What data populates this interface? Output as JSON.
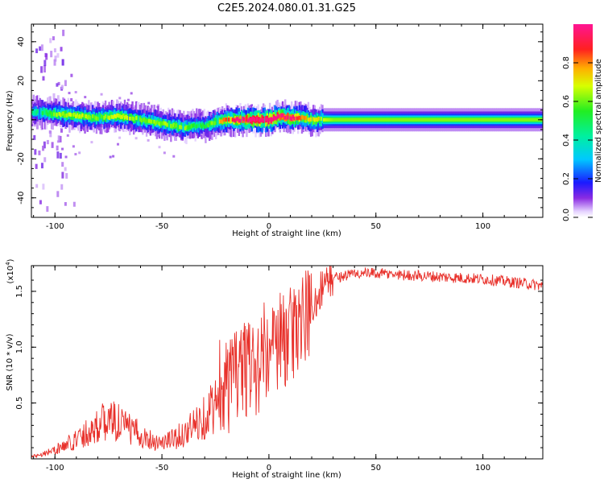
{
  "figure": {
    "title": "C2E5.2024.080.01.31.G25"
  },
  "chart_data": [
    {
      "type": "heatmap",
      "title": "C2E5.2024.080.01.31.G25",
      "xlabel": "Height of straight line (km)",
      "ylabel": "Frequency (Hz)",
      "xlim": [
        -111,
        128
      ],
      "ylim": [
        -50,
        49
      ],
      "xticks": [
        -100,
        -50,
        0,
        50,
        100
      ],
      "yticks": [
        40,
        20,
        0,
        -20,
        -40
      ],
      "colorbar": {
        "label": "Normalized spectral amplitude",
        "range": [
          0,
          1
        ],
        "ticks": [
          "0.0",
          "0.2",
          "0.4",
          "0.6",
          "0.8"
        ],
        "colormap": "rainbow (violet-blue-cyan-green-yellow-orange-red-pink)"
      },
      "ridge": {
        "description": "Doppler frequency trace vs height",
        "x": [
          -110,
          -100,
          -90,
          -80,
          -70,
          -60,
          -50,
          -40,
          -35,
          -30,
          -25,
          -20,
          -10,
          0,
          5,
          10,
          15,
          20,
          30,
          50,
          75,
          100,
          128
        ],
        "y": [
          4,
          3,
          2,
          1,
          2,
          0,
          -2,
          -4,
          -3,
          -3,
          -1,
          0,
          0,
          0,
          2,
          1,
          1,
          0,
          0,
          0,
          0,
          0,
          0
        ],
        "amplitude": [
          0.3,
          0.45,
          0.5,
          0.45,
          0.5,
          0.45,
          0.45,
          0.45,
          0.35,
          0.35,
          0.5,
          0.65,
          0.9,
          0.95,
          0.85,
          0.8,
          0.6,
          0.55,
          0.45,
          0.45,
          0.45,
          0.45,
          0.45
        ]
      }
    },
    {
      "type": "line",
      "xlabel": "Height of straight line (km)",
      "ylabel": "SNR (10 * v/v)",
      "y_scale_label": "(x10",
      "y_scale_exponent": "4",
      "xlim": [
        -111,
        128
      ],
      "ylim": [
        0,
        1.73
      ],
      "xticks": [
        -100,
        -50,
        0,
        50,
        100
      ],
      "yticks": [
        1.5,
        1.0,
        0.5
      ],
      "ytick_labels": [
        "1.5",
        "1.0",
        "0.5"
      ],
      "series": [
        {
          "name": "SNR",
          "color": "#e8302a",
          "x": [
            -111,
            -105,
            -100,
            -95,
            -90,
            -85,
            -80,
            -75,
            -70,
            -65,
            -60,
            -55,
            -50,
            -45,
            -40,
            -35,
            -30,
            -25,
            -20,
            -15,
            -10,
            -5,
            0,
            5,
            10,
            15,
            20,
            25,
            30,
            40,
            50,
            60,
            70,
            80,
            90,
            100,
            110,
            120,
            128
          ],
          "y": [
            0.02,
            0.05,
            0.08,
            0.12,
            0.18,
            0.24,
            0.3,
            0.35,
            0.33,
            0.26,
            0.22,
            0.17,
            0.14,
            0.18,
            0.22,
            0.3,
            0.38,
            0.5,
            0.6,
            0.75,
            0.82,
            0.8,
            0.9,
            1.0,
            1.1,
            1.2,
            1.35,
            1.55,
            1.62,
            1.66,
            1.66,
            1.65,
            1.64,
            1.63,
            1.62,
            1.61,
            1.59,
            1.57,
            1.55
          ]
        }
      ]
    }
  ]
}
